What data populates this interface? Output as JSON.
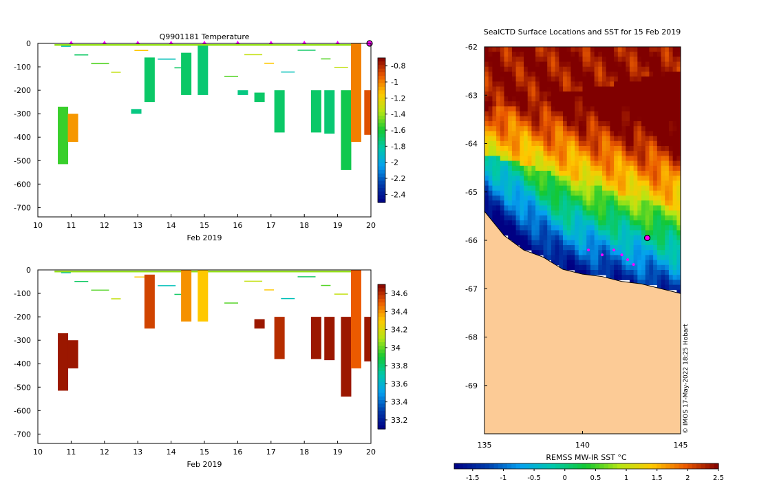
{
  "chart_data": [
    {
      "type": "heatmap",
      "title": "Q9901181  Temperature",
      "xlabel": "Feb 2019",
      "ylabel": "",
      "xlim": [
        10,
        20
      ],
      "ylim": [
        -740,
        0
      ],
      "xticks": [
        "10",
        "11",
        "12",
        "13",
        "14",
        "15",
        "16",
        "17",
        "18",
        "19",
        "20"
      ],
      "yticks": [
        "0",
        "-100",
        "-200",
        "-300",
        "-400",
        "-500",
        "-600",
        "-700"
      ],
      "profile_markers_day": [
        11,
        12,
        13,
        14,
        15,
        16,
        17,
        18,
        19
      ],
      "profiles": [
        {
          "day": 10.6,
          "depth": [
            270,
            515
          ],
          "value": -1.55
        },
        {
          "day": 10.9,
          "depth": [
            300,
            420
          ],
          "value": -1.05
        },
        {
          "day": 13.2,
          "depth": [
            60,
            250
          ],
          "value": -1.7
        },
        {
          "day": 12.8,
          "depth": [
            280,
            300
          ],
          "value": -1.75
        },
        {
          "day": 14.3,
          "depth": [
            40,
            220
          ],
          "value": -1.7
        },
        {
          "day": 14.8,
          "depth": [
            10,
            220
          ],
          "value": -1.72
        },
        {
          "day": 16.0,
          "depth": [
            200,
            220
          ],
          "value": -1.75
        },
        {
          "day": 16.5,
          "depth": [
            210,
            250
          ],
          "value": -1.7
        },
        {
          "day": 17.1,
          "depth": [
            200,
            380
          ],
          "value": -1.7
        },
        {
          "day": 18.2,
          "depth": [
            200,
            380
          ],
          "value": -1.7
        },
        {
          "day": 18.6,
          "depth": [
            200,
            385
          ],
          "value": -1.72
        },
        {
          "day": 19.1,
          "depth": [
            200,
            540
          ],
          "value": -1.65
        },
        {
          "day": 19.4,
          "depth": [
            0,
            420
          ],
          "value": -1.0
        },
        {
          "day": 19.8,
          "depth": [
            200,
            390
          ],
          "value": -0.9
        }
      ],
      "colorbar": {
        "ticks": [
          "-0.8",
          "-1",
          "-1.2",
          "-1.4",
          "-1.6",
          "-1.8",
          "-2",
          "-2.2",
          "-2.4"
        ],
        "range": [
          -2.5,
          -0.7
        ]
      }
    },
    {
      "type": "heatmap",
      "title": "",
      "xlabel": "Feb 2019",
      "ylabel": "",
      "xlim": [
        10,
        20
      ],
      "ylim": [
        -740,
        0
      ],
      "xticks": [
        "10",
        "11",
        "12",
        "13",
        "14",
        "15",
        "16",
        "17",
        "18",
        "19",
        "20"
      ],
      "yticks": [
        "0",
        "-100",
        "-200",
        "-300",
        "-400",
        "-500",
        "-600",
        "-700"
      ],
      "profiles": [
        {
          "day": 10.6,
          "depth": [
            270,
            515
          ],
          "value": 34.65
        },
        {
          "day": 10.9,
          "depth": [
            300,
            420
          ],
          "value": 34.65
        },
        {
          "day": 13.2,
          "depth": [
            20,
            250
          ],
          "value": 34.55
        },
        {
          "day": 14.3,
          "depth": [
            0,
            220
          ],
          "value": 34.4
        },
        {
          "day": 14.8,
          "depth": [
            0,
            220
          ],
          "value": 34.3
        },
        {
          "day": 16.5,
          "depth": [
            210,
            250
          ],
          "value": 34.65
        },
        {
          "day": 17.1,
          "depth": [
            200,
            380
          ],
          "value": 34.6
        },
        {
          "day": 18.2,
          "depth": [
            200,
            380
          ],
          "value": 34.65
        },
        {
          "day": 18.6,
          "depth": [
            200,
            385
          ],
          "value": 34.65
        },
        {
          "day": 19.1,
          "depth": [
            200,
            540
          ],
          "value": 34.65
        },
        {
          "day": 19.4,
          "depth": [
            0,
            420
          ],
          "value": 34.5
        },
        {
          "day": 19.8,
          "depth": [
            200,
            390
          ],
          "value": 34.65
        }
      ],
      "colorbar": {
        "ticks": [
          "34.6",
          "34.4",
          "34.2",
          "34",
          "33.8",
          "33.6",
          "33.4",
          "33.2"
        ],
        "range": [
          33.1,
          34.7
        ]
      }
    },
    {
      "type": "heatmap",
      "title": "SealCTD Surface Locations and SST for 15 Feb 2019",
      "xlabel": "",
      "ylabel": "",
      "xlim": [
        135,
        145
      ],
      "ylim": [
        -70,
        -62
      ],
      "xticks": [
        "135",
        "140",
        "145"
      ],
      "yticks": [
        "-62",
        "-63",
        "-64",
        "-65",
        "-66",
        "-67",
        "-68",
        "-69"
      ],
      "colorbar": {
        "label": "REMSS MW-IR SST °C",
        "ticks": [
          "-1.5",
          "-1",
          "-0.5",
          "0",
          "0.5",
          "1",
          "1.5",
          "2",
          "2.5"
        ],
        "range": [
          -1.8,
          2.5
        ]
      },
      "seal_positions": [
        {
          "lon": 143.3,
          "lat": -65.95,
          "current": true
        },
        {
          "lon": 141.6,
          "lat": -66.2
        },
        {
          "lon": 142.0,
          "lat": -66.3
        },
        {
          "lon": 142.3,
          "lat": -66.4
        },
        {
          "lon": 142.6,
          "lat": -66.5
        },
        {
          "lon": 141.0,
          "lat": -66.3
        },
        {
          "lon": 140.3,
          "lat": -66.2
        }
      ],
      "credit": "© IMOS 17-May-2022 18:25 Hobart"
    }
  ]
}
